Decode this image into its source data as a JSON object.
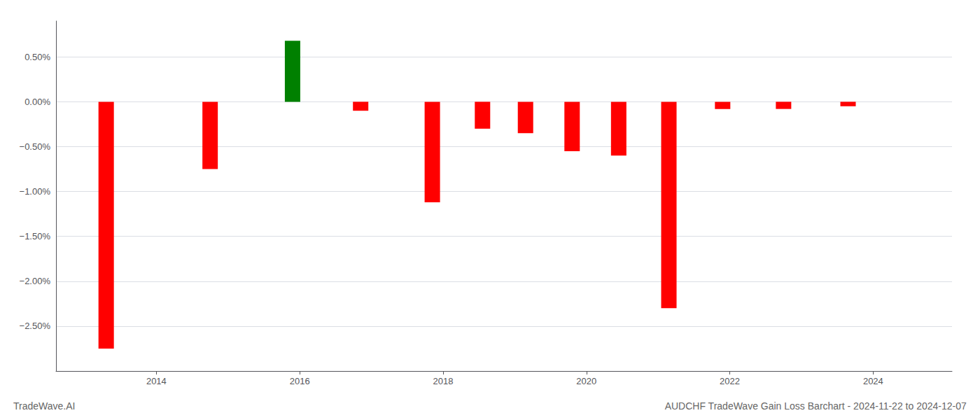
{
  "chart_data": {
    "type": "bar",
    "title": "AUDCHF TradeWave Gain Loss Barchart - 2024-11-22 to 2024-12-07",
    "annotations": [
      "TradeWave.AI"
    ],
    "x": [
      2013.3,
      2014.75,
      2015.9,
      2016.85,
      2017.85,
      2018.55,
      2019.15,
      2019.8,
      2020.45,
      2021.15,
      2021.9,
      2022.75,
      2023.65
    ],
    "values": [
      -2.75,
      -0.75,
      0.68,
      -0.1,
      -1.12,
      -0.3,
      -0.35,
      -0.55,
      -0.6,
      -2.3,
      -0.08,
      -0.08,
      -0.05
    ],
    "colors": [
      "#ff0000",
      "#ff0000",
      "#008000",
      "#ff0000",
      "#ff0000",
      "#ff0000",
      "#ff0000",
      "#ff0000",
      "#ff0000",
      "#ff0000",
      "#ff0000",
      "#ff0000",
      "#ff0000"
    ],
    "xlim": [
      2012.6,
      2025.1
    ],
    "xticks": [
      2014,
      2016,
      2018,
      2020,
      2022,
      2024
    ],
    "ylim": [
      -3.0,
      0.9
    ],
    "yticks": [
      {
        "value": 0.5,
        "label": "0.50%"
      },
      {
        "value": 0.0,
        "label": "0.00%"
      },
      {
        "value": -0.5,
        "label": "−0.50%"
      },
      {
        "value": -1.0,
        "label": "−1.00%"
      },
      {
        "value": -1.5,
        "label": "−1.50%"
      },
      {
        "value": -2.0,
        "label": "−2.00%"
      },
      {
        "value": -2.5,
        "label": "−2.50%"
      }
    ],
    "grid": true
  }
}
